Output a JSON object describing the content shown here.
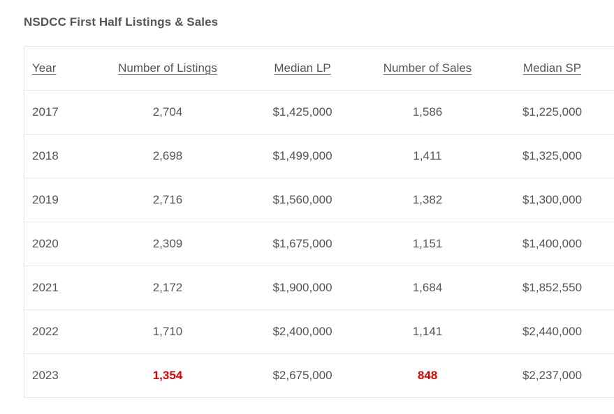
{
  "title": "NSDCC First Half Listings & Sales",
  "colors": {
    "highlight": "#e00000",
    "text": "#555555",
    "border": "#e8e8e8"
  },
  "table": {
    "headers": [
      "Year",
      "Number of Listings",
      "Median LP",
      "Number of Sales",
      "Median SP"
    ],
    "rows": [
      {
        "year": "2017",
        "listings": "2,704",
        "median_lp": "$1,425,000",
        "sales": "1,586",
        "median_sp": "$1,225,000"
      },
      {
        "year": "2018",
        "listings": "2,698",
        "median_lp": "$1,499,000",
        "sales": "1,411",
        "median_sp": "$1,325,000"
      },
      {
        "year": "2019",
        "listings": "2,716",
        "median_lp": "$1,560,000",
        "sales": "1,382",
        "median_sp": "$1,300,000"
      },
      {
        "year": "2020",
        "listings": "2,309",
        "median_lp": "$1,675,000",
        "sales": "1,151",
        "median_sp": "$1,400,000"
      },
      {
        "year": "2021",
        "listings": "2,172",
        "median_lp": "$1,900,000",
        "sales": "1,684",
        "median_sp": "$1,852,550"
      },
      {
        "year": "2022",
        "listings": "1,710",
        "median_lp": "$2,400,000",
        "sales": "1,141",
        "median_sp": "$2,440,000"
      },
      {
        "year": "2023",
        "listings": "1,354",
        "median_lp": "$2,675,000",
        "sales": "848",
        "median_sp": "$2,237,000"
      }
    ]
  }
}
